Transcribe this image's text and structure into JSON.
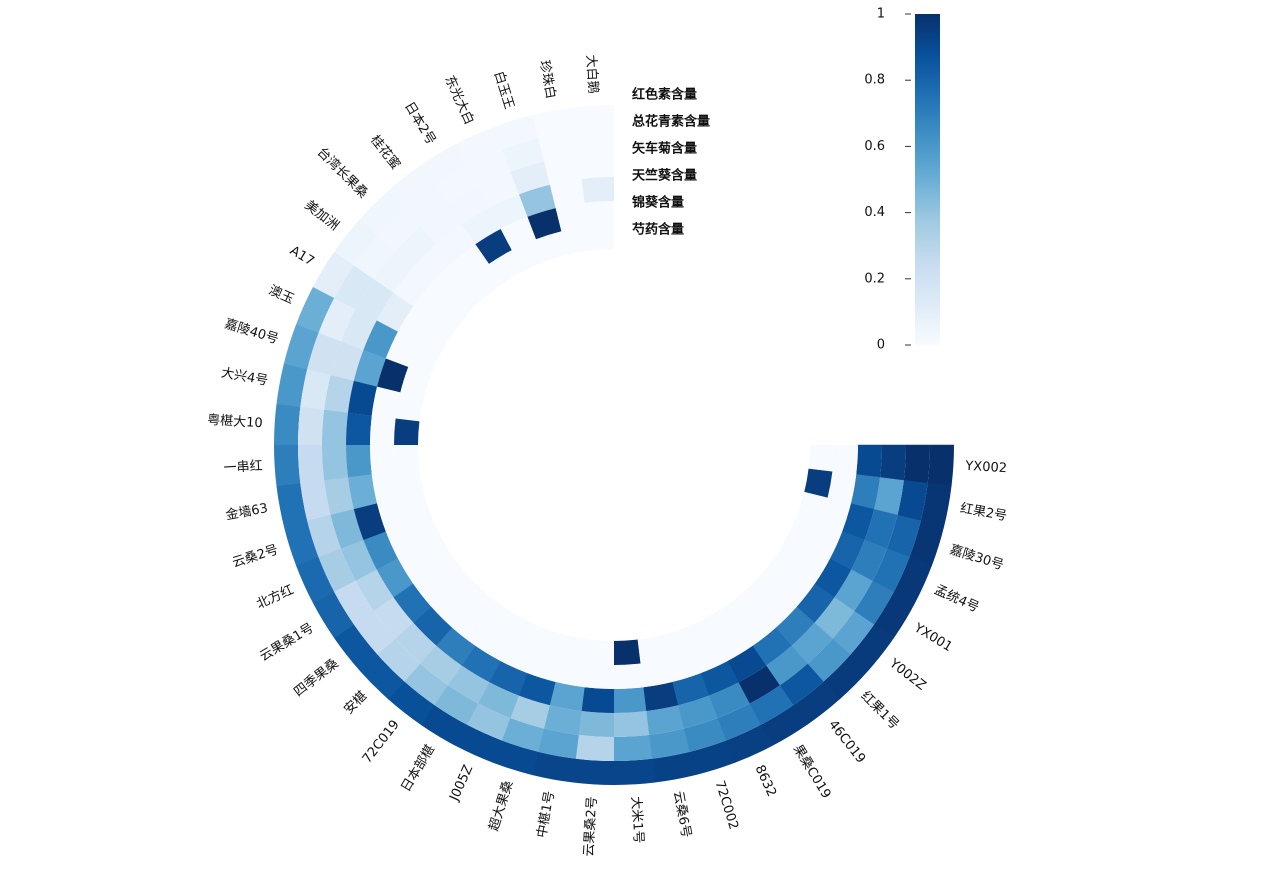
{
  "chart_data": {
    "type": "polar-heatmap",
    "categories": [
      "大白鹅",
      "珍珠白",
      "白玉王",
      "东光大白",
      "日本2号",
      "桂花蜜",
      "台湾长果桑",
      "美加洲",
      "A17",
      "澳玉",
      "嘉陵40号",
      "大兴4号",
      "粤椹大10",
      "一串红",
      "金墙63",
      "云桑2号",
      "北方红",
      "云果桑1号",
      "四季果桑",
      "安椹",
      "72C019",
      "日本部椹",
      "J005Z",
      "超大果桑",
      "中椹1号",
      "云果桑2号",
      "大米1号",
      "云桑6号",
      "72C002",
      "8632",
      "果桑C019",
      "46C019",
      "红果1号",
      "Y002Z",
      "YX001",
      "孟统4号",
      "嘉陵30号",
      "红果2号",
      "YX002"
    ],
    "series": [
      {
        "name": "红色素含量",
        "values": [
          0,
          0,
          0.02,
          0.02,
          0.03,
          0.03,
          0.04,
          0.05,
          0.1,
          0.5,
          0.55,
          0.6,
          0.65,
          0.7,
          0.75,
          0.75,
          0.78,
          0.8,
          0.85,
          0.85,
          0.88,
          0.9,
          0.9,
          0.9,
          0.92,
          0.92,
          0.92,
          0.93,
          0.93,
          0.94,
          0.95,
          0.95,
          0.96,
          0.96,
          0.97,
          0.97,
          0.98,
          0.98,
          1
        ]
      },
      {
        "name": "总花青素含量",
        "values": [
          0,
          0,
          0.05,
          0.02,
          0.02,
          0.03,
          0.03,
          0.04,
          0.15,
          0.1,
          0.2,
          0.15,
          0.2,
          0.25,
          0.25,
          0.3,
          0.35,
          0.25,
          0.25,
          0.3,
          0.4,
          0.45,
          0.4,
          0.5,
          0.55,
          0.3,
          0.55,
          0.6,
          0.65,
          0.7,
          0.75,
          0.85,
          0.6,
          0.55,
          0.7,
          0.75,
          0.8,
          0.9,
          1
        ]
      },
      {
        "name": "矢车菊含量",
        "values": [
          0,
          0,
          0.1,
          0.02,
          0.03,
          0.03,
          0.05,
          0.05,
          0.15,
          0.15,
          0.2,
          0.3,
          0.4,
          0.4,
          0.35,
          0.45,
          0.4,
          0.3,
          0.25,
          0.3,
          0.35,
          0.4,
          0.45,
          0.35,
          0.5,
          0.45,
          0.4,
          0.55,
          0.6,
          0.65,
          1,
          0.6,
          0.55,
          0.45,
          0.55,
          0.7,
          0.75,
          0.55,
          0.95
        ]
      },
      {
        "name": "天竺葵含量",
        "values": [
          0.1,
          0,
          0.4,
          0.05,
          0.05,
          0.02,
          0.02,
          0.02,
          0.1,
          0.6,
          0.55,
          0.9,
          0.85,
          0.6,
          0.5,
          0.95,
          0.65,
          0.6,
          0.75,
          0.8,
          0.7,
          0.75,
          0.8,
          0.85,
          0.55,
          0.9,
          0.6,
          0.95,
          0.8,
          0.85,
          0.9,
          0.75,
          0.7,
          0.8,
          0.85,
          0.8,
          0.85,
          0.7,
          0.9
        ]
      },
      {
        "name": "锦葵含量",
        "values": [
          0,
          0,
          1,
          0,
          0.95,
          0,
          0,
          0,
          0,
          0,
          1,
          0,
          0,
          0,
          0,
          0,
          0,
          0,
          0,
          0,
          0,
          0,
          0,
          0,
          0,
          0,
          0,
          0,
          0,
          0,
          0,
          0,
          0,
          0,
          0,
          0,
          0,
          0,
          0
        ]
      },
      {
        "name": "芍药含量",
        "values": [
          0,
          0,
          0,
          0,
          0,
          0,
          0,
          0,
          0,
          0,
          0,
          0,
          0.95,
          0,
          0,
          0,
          0,
          0,
          0,
          0,
          0,
          0,
          0,
          0,
          0,
          0,
          1,
          0,
          0,
          0,
          0,
          0,
          0,
          0,
          0,
          0,
          0,
          0.95,
          0
        ]
      }
    ],
    "colors": [
      "#f7fbff",
      "#deebf7",
      "#c6dbef",
      "#9ecae1",
      "#6baed6",
      "#4292c6",
      "#2171b5",
      "#08519c",
      "#08306b"
    ],
    "clim": [
      0,
      1
    ],
    "cticks": [
      0,
      0.2,
      0.4,
      0.6,
      0.8,
      1
    ]
  }
}
